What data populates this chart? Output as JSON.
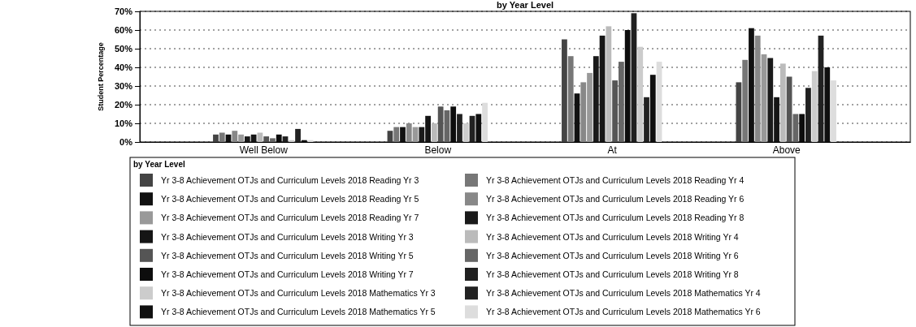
{
  "chart_data": {
    "type": "bar",
    "title": "by Year Level",
    "ylabel": "Student Percentage",
    "legend_title": "by Year Level",
    "categories": [
      "Well Below",
      "Below",
      "At",
      "Above"
    ],
    "ylim": [
      0,
      70
    ],
    "yticks": [
      {
        "value": 0,
        "label": "0%"
      },
      {
        "value": 10,
        "label": "10%"
      },
      {
        "value": 20,
        "label": "20%"
      },
      {
        "value": 30,
        "label": "30%"
      },
      {
        "value": 40,
        "label": "40%"
      },
      {
        "value": 50,
        "label": "50%"
      },
      {
        "value": 60,
        "label": "60%"
      },
      {
        "value": 70,
        "label": "70%"
      }
    ],
    "grid": "y",
    "legend": "bottom",
    "series": [
      {
        "name": "Yr 3-8 Achievement OTJs and Curriculum Levels 2018 Reading Yr 3",
        "color": "#444444",
        "values": [
          4,
          6,
          55,
          32
        ]
      },
      {
        "name": "Yr 3-8 Achievement OTJs and Curriculum Levels 2018 Reading Yr 4",
        "color": "#777777",
        "values": [
          5,
          8,
          46,
          44
        ]
      },
      {
        "name": "Yr 3-8 Achievement OTJs and Curriculum Levels 2018 Reading Yr 5",
        "color": "#111111",
        "values": [
          4,
          8,
          26,
          61
        ]
      },
      {
        "name": "Yr 3-8 Achievement OTJs and Curriculum Levels 2018 Reading Yr 6",
        "color": "#888888",
        "values": [
          6,
          10,
          32,
          57
        ]
      },
      {
        "name": "Yr 3-8 Achievement OTJs and Curriculum Levels 2018 Reading Yr 7",
        "color": "#999999",
        "values": [
          4,
          8,
          37,
          47
        ]
      },
      {
        "name": "Yr 3-8 Achievement OTJs and Curriculum Levels 2018 Reading Yr 8",
        "color": "#1a1a1a",
        "values": [
          3,
          8,
          46,
          45
        ]
      },
      {
        "name": "Yr 3-8 Achievement OTJs and Curriculum Levels 2018 Writing Yr 3",
        "color": "#151515",
        "values": [
          4,
          14,
          57,
          24
        ]
      },
      {
        "name": "Yr 3-8 Achievement OTJs and Curriculum Levels 2018 Writing Yr 4",
        "color": "#bbbbbb",
        "values": [
          5,
          10,
          62,
          42
        ]
      },
      {
        "name": "Yr 3-8 Achievement OTJs and Curriculum Levels 2018 Writing Yr 5",
        "color": "#555555",
        "values": [
          3,
          19,
          33,
          35
        ]
      },
      {
        "name": "Yr 3-8 Achievement OTJs and Curriculum Levels 2018 Writing Yr 6",
        "color": "#666666",
        "values": [
          2,
          17,
          43,
          15
        ]
      },
      {
        "name": "Yr 3-8 Achievement OTJs and Curriculum Levels 2018 Writing Yr 7",
        "color": "#0d0d0d",
        "values": [
          4,
          19,
          60,
          15
        ]
      },
      {
        "name": "Yr 3-8 Achievement OTJs and Curriculum Levels 2018 Writing Yr 8",
        "color": "#202020",
        "values": [
          3,
          15,
          69,
          29
        ]
      },
      {
        "name": "Yr 3-8 Achievement OTJs and Curriculum Levels 2018 Mathematics Yr 3",
        "color": "#cccccc",
        "values": [
          1,
          10,
          51,
          38
        ]
      },
      {
        "name": "Yr 3-8 Achievement OTJs and Curriculum Levels 2018 Mathematics Yr 4",
        "color": "#222222",
        "values": [
          7,
          14,
          24,
          57
        ]
      },
      {
        "name": "Yr 3-8 Achievement OTJs and Curriculum Levels 2018 Mathematics Yr 5",
        "color": "#101010",
        "values": [
          1,
          15,
          36,
          40
        ]
      },
      {
        "name": "Yr 3-8 Achievement OTJs and Curriculum Levels 2018 Mathematics Yr 6",
        "color": "#dddddd",
        "values": [
          1,
          21,
          43,
          33
        ]
      }
    ]
  }
}
